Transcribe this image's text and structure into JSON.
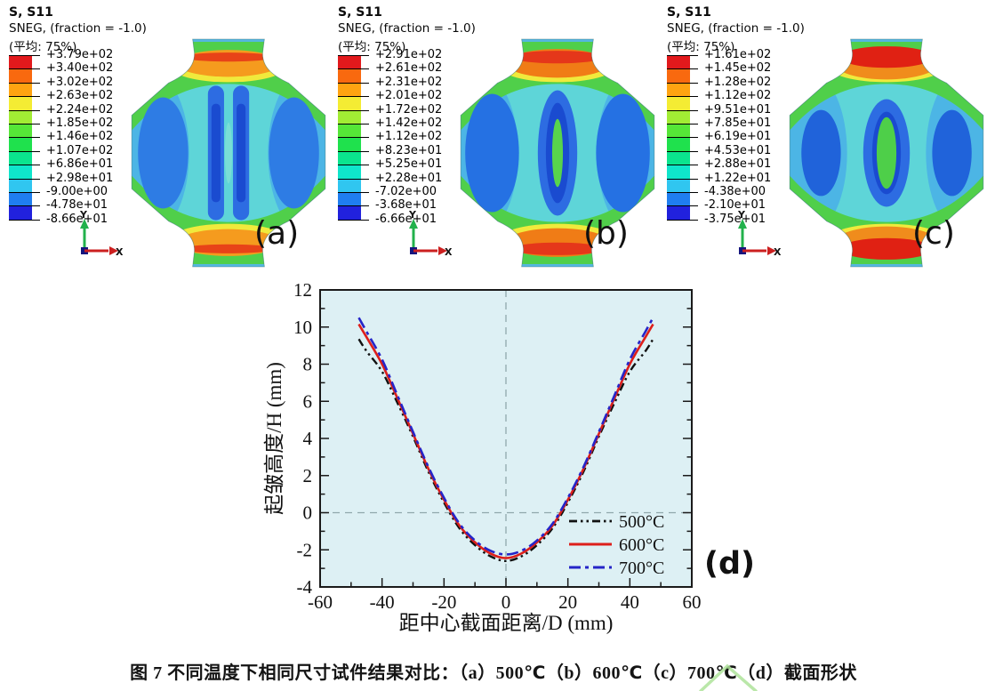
{
  "figure": {
    "caption": "图 7 不同温度下相同尺寸试件结果对比：（a）500℃（b）600℃（c）700℃（d）截面形状"
  },
  "colorbar_colors": [
    "#e2191c",
    "#f9690f",
    "#ffa411",
    "#f4ec33",
    "#a2ec34",
    "#55e637",
    "#1fe14d",
    "#0be48e",
    "#0fe5cb",
    "#30c6f0",
    "#1f7ef0",
    "#2121dd"
  ],
  "panels": [
    {
      "label": "(a)",
      "title": "S, S11",
      "subtitle": "SNEG, (fraction = -1.0)",
      "avg_label": "(平均: 75%)",
      "triad_y": "Y",
      "triad_x": "X",
      "colorbar_values": [
        "+3.79e+02",
        "+3.40e+02",
        "+3.02e+02",
        "+2.63e+02",
        "+2.24e+02",
        "+1.85e+02",
        "+1.46e+02",
        "+1.07e+02",
        "+6.86e+01",
        "+2.98e+01",
        "-9.00e+00",
        "-4.78e+01",
        "-8.66e+01"
      ],
      "contour": {
        "body": "#55c9da",
        "band_orange": "#f59b1e",
        "orange_ry": 15,
        "band_red": "#e84318",
        "red_ry": 5,
        "oval": "#2e7ce4",
        "oval_rx": 28,
        "oval_ry": 62,
        "center": "stripes",
        "lens": "#79ded6",
        "lens_rx": 4,
        "lens_ry": 34
      }
    },
    {
      "label": "(b)",
      "title": "S, S11",
      "subtitle": "SNEG, (fraction = -1.0)",
      "avg_label": "(平均: 75%)",
      "triad_y": "Y",
      "triad_x": "X",
      "colorbar_values": [
        "+2.91e+02",
        "+2.61e+02",
        "+2.31e+02",
        "+2.01e+02",
        "+1.72e+02",
        "+1.42e+02",
        "+1.12e+02",
        "+8.23e+01",
        "+5.25e+01",
        "+2.28e+01",
        "-7.02e+00",
        "-3.68e+01",
        "-6.66e+01"
      ],
      "contour": {
        "body": "#51c5dc",
        "band_orange": "#f07c16",
        "orange_ry": 16,
        "band_red": "#e5371a",
        "red_ry": 7,
        "oval": "#2571e3",
        "oval_rx": 30,
        "oval_ry": 66,
        "center": "ring",
        "ring_rx": 22,
        "ring_ry": 70,
        "core_rx": 13,
        "core_ry": 56,
        "lens": "#58d44c",
        "lens_rx": 6,
        "lens_ry": 38
      }
    },
    {
      "label": "(c)",
      "title": "S, S11",
      "subtitle": "SNEG, (fraction = -1.0)",
      "avg_label": "(平均: 75%)",
      "triad_y": "Y",
      "triad_x": "X",
      "colorbar_values": [
        "+1.61e+02",
        "+1.45e+02",
        "+1.28e+02",
        "+1.12e+02",
        "+9.51e+01",
        "+7.85e+01",
        "+6.19e+01",
        "+4.53e+01",
        "+2.88e+01",
        "+1.22e+01",
        "-4.38e+00",
        "-2.10e+01",
        "-3.75e+01"
      ],
      "contour": {
        "body": "#58cce0",
        "band_orange": "#f08c1c",
        "orange_ry": 18,
        "band_red": "#e02113",
        "red_ry": 12,
        "oval": "#2063da",
        "oval_rx": 22,
        "oval_ry": 48,
        "center": "ring",
        "ring_rx": 26,
        "ring_ry": 60,
        "core_rx": 16,
        "core_ry": 46,
        "lens": "#4ecf49",
        "lens_rx": 11,
        "lens_ry": 40
      }
    }
  ],
  "chart_data": {
    "type": "line",
    "panel_label": "(d)",
    "xlabel": "距中心截面距离/D (mm)",
    "ylabel": "起皱高度/H (mm)",
    "xlim": [
      -60,
      60
    ],
    "ylim": [
      -4,
      12
    ],
    "x_ticks": [
      -60,
      -40,
      -20,
      0,
      20,
      40,
      60
    ],
    "y_ticks": [
      -4,
      -2,
      0,
      2,
      4,
      6,
      8,
      10,
      12
    ],
    "x_minor_step": 10,
    "y_minor_step": 1,
    "grid": "zero-reference-dashed-only",
    "background": "#ddf0f4",
    "frame_color": "#1a1a1a",
    "reference_line_color": "#90a8ac",
    "legend_position": "bottom-right",
    "x": [
      -47.5,
      -45,
      -40,
      -35,
      -30,
      -25,
      -20,
      -15,
      -10,
      -5,
      0,
      5,
      10,
      15,
      20,
      25,
      30,
      35,
      40,
      45,
      47.5
    ],
    "series": [
      {
        "name": "500°C",
        "color": "#111111",
        "style": "dash-dot-dot",
        "width": 2.4,
        "values": [
          9.35,
          8.7,
          7.6,
          5.9,
          4.1,
          2.2,
          0.55,
          -0.85,
          -1.75,
          -2.35,
          -2.6,
          -2.35,
          -1.75,
          -0.85,
          0.55,
          2.2,
          4.1,
          5.9,
          7.6,
          8.7,
          9.35
        ]
      },
      {
        "name": "600°C",
        "color": "#dd1f1b",
        "style": "solid",
        "width": 2.6,
        "values": [
          10.15,
          9.45,
          8.0,
          6.15,
          4.25,
          2.35,
          0.7,
          -0.7,
          -1.6,
          -2.2,
          -2.45,
          -2.2,
          -1.6,
          -0.7,
          0.7,
          2.35,
          4.25,
          6.15,
          8.0,
          9.45,
          10.15
        ]
      },
      {
        "name": "700°C",
        "color": "#2525c8",
        "style": "dash-dot",
        "width": 2.6,
        "values": [
          10.5,
          9.75,
          8.25,
          6.3,
          4.35,
          2.45,
          0.8,
          -0.6,
          -1.5,
          -2.05,
          -2.25,
          -2.05,
          -1.5,
          -0.6,
          0.8,
          2.45,
          4.35,
          6.3,
          8.25,
          9.75,
          10.5
        ]
      }
    ]
  },
  "annotation": {
    "type": "handwritten-check-mark",
    "color": "#aee39a"
  }
}
